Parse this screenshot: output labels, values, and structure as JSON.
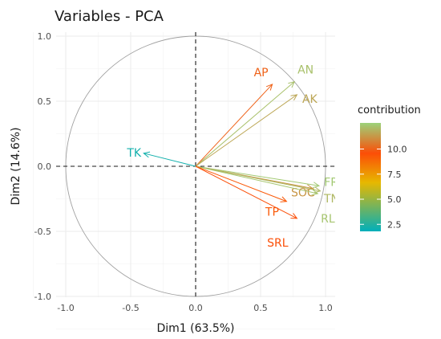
{
  "chart_data": {
    "type": "scatter",
    "title": "Variables - PCA",
    "xlabel": "Dim1 (63.5%)",
    "ylabel": "Dim2 (14.6%)",
    "xlim": [
      -1.0,
      1.0
    ],
    "ylim": [
      -1.0,
      1.0
    ],
    "x_ticks": [
      "-1.0",
      "-0.5",
      "0.0",
      "0.5",
      "1.0"
    ],
    "y_ticks": [
      "1.0",
      "0.5",
      "0.0",
      "-0.5",
      "-1.0"
    ],
    "grid": true,
    "legend": {
      "title": "contribution",
      "placement": "right",
      "ticks": [
        "10.0",
        "7.5",
        "5.0",
        "2.5"
      ],
      "tick_values": [
        10.0,
        7.5,
        5.0,
        2.5
      ],
      "range": [
        1.8,
        12.6
      ]
    },
    "variables": [
      {
        "name": "AP",
        "x": 0.59,
        "y": 0.63,
        "contribution": 10.0
      },
      {
        "name": "AN",
        "x": 0.76,
        "y": 0.65,
        "contribution": 12.2
      },
      {
        "name": "AK",
        "x": 0.78,
        "y": 0.55,
        "contribution": 11.6
      },
      {
        "name": "TK",
        "x": -0.4,
        "y": 0.1,
        "contribution": 2.2
      },
      {
        "name": "FRB",
        "x": 0.95,
        "y": -0.15,
        "contribution": 12.4
      },
      {
        "name": "SOC",
        "x": 0.9,
        "y": -0.17,
        "contribution": 11.2
      },
      {
        "name": "TN",
        "x": 0.96,
        "y": -0.19,
        "contribution": 12.0
      },
      {
        "name": "RLD",
        "x": 0.94,
        "y": -0.21,
        "contribution": 12.3
      },
      {
        "name": "TP",
        "x": 0.7,
        "y": -0.27,
        "contribution": 9.3
      },
      {
        "name": "SRL",
        "x": 0.78,
        "y": -0.4,
        "contribution": 9.6
      }
    ]
  }
}
